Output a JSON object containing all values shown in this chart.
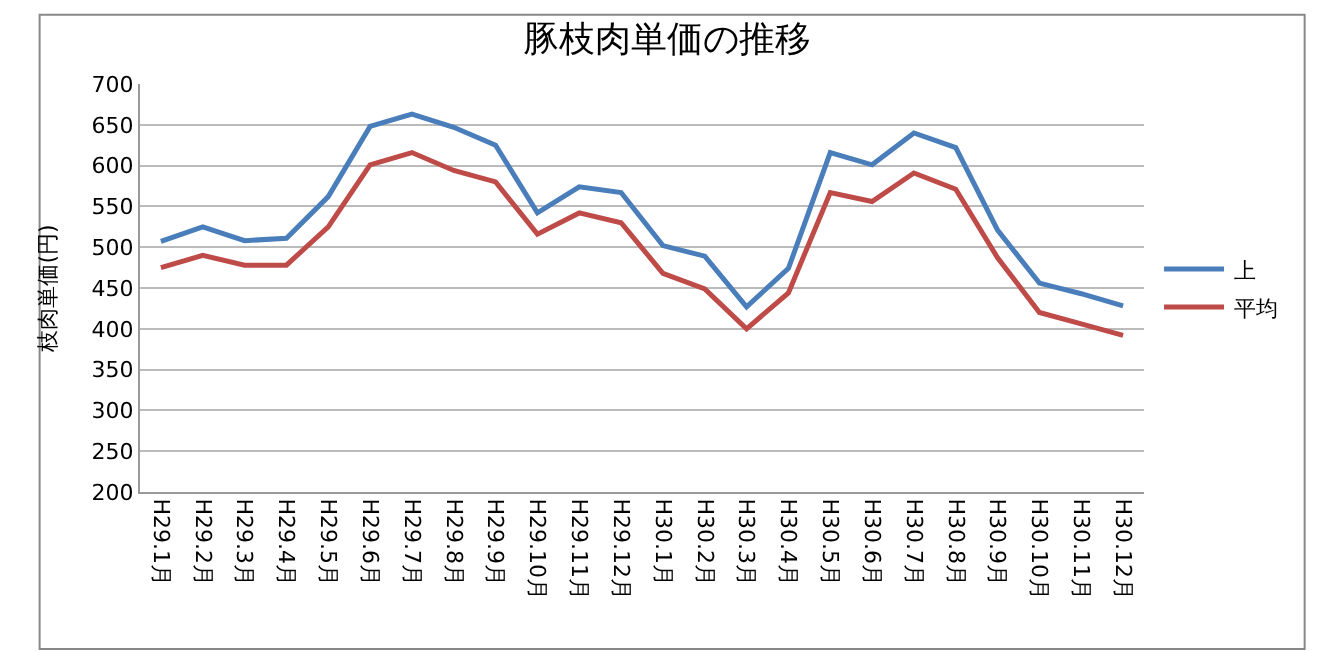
{
  "chart_data": {
    "type": "line",
    "title": "豚枝肉単価の推移",
    "ylabel": "枝肉単価(円)",
    "categories": [
      "H29.1月",
      "H29.2月",
      "H29.3月",
      "H29.4月",
      "H29.5月",
      "H29.6月",
      "H29.7月",
      "H29.8月",
      "H29.9月",
      "H29.10月",
      "H29.11月",
      "H29.12月",
      "H30.1月",
      "H30.2月",
      "H30.3月",
      "H30.4月",
      "H30.5月",
      "H30.6月",
      "H30.7月",
      "H30.8月",
      "H30.9月",
      "H30.10月",
      "H30.11月",
      "H30.12月"
    ],
    "series": [
      {
        "name": "上",
        "color": "#4a7ebb",
        "values": [
          507,
          525,
          508,
          511,
          562,
          648,
          663,
          647,
          625,
          542,
          574,
          567,
          502,
          489,
          427,
          474,
          616,
          601,
          640,
          622,
          521,
          456,
          443,
          428
        ]
      },
      {
        "name": "平均",
        "color": "#be4b48",
        "values": [
          475,
          490,
          478,
          478,
          525,
          601,
          616,
          594,
          580,
          516,
          542,
          530,
          468,
          449,
          400,
          444,
          567,
          556,
          591,
          571,
          487,
          420,
          406,
          392
        ]
      }
    ],
    "ylim": [
      200,
      700
    ],
    "yticks": [
      200,
      250,
      300,
      350,
      400,
      450,
      500,
      550,
      600,
      650,
      700
    ],
    "grid": "y",
    "legend": "right",
    "marker": "none",
    "line_style": "solid"
  }
}
